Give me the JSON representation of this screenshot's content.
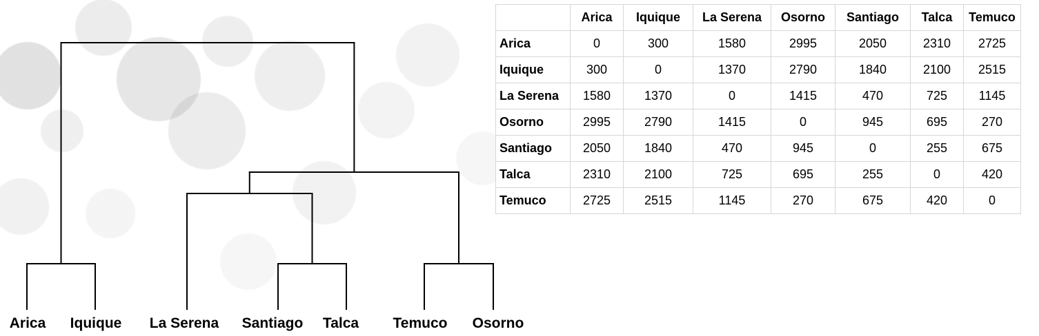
{
  "dendrogram": {
    "leaves": [
      "Arica",
      "Iquique",
      "La Serena",
      "Santiago",
      "Talca",
      "Temuco",
      "Osorno"
    ],
    "merges": [
      {
        "id": "m1",
        "children": [
          "Arica",
          "Iquique"
        ]
      },
      {
        "id": "m2",
        "children": [
          "Santiago",
          "Talca"
        ]
      },
      {
        "id": "m3",
        "children": [
          "Temuco",
          "Osorno"
        ]
      },
      {
        "id": "m4",
        "children": [
          "La Serena",
          "m2"
        ]
      },
      {
        "id": "m5",
        "children": [
          "m4",
          "m3"
        ]
      },
      {
        "id": "m6",
        "children": [
          "m1",
          "m5"
        ]
      }
    ]
  },
  "table": {
    "columns": [
      "Arica",
      "Iquique",
      "La Serena",
      "Osorno",
      "Santiago",
      "Talca",
      "Temuco"
    ],
    "rows": [
      {
        "name": "Arica",
        "values": [
          "0",
          "300",
          "1580",
          "2995",
          "2050",
          "2310",
          "2725"
        ]
      },
      {
        "name": "Iquique",
        "values": [
          "300",
          "0",
          "1370",
          "2790",
          "1840",
          "2100",
          "2515"
        ]
      },
      {
        "name": "La Serena",
        "values": [
          "1580",
          "1370",
          "0",
          "1415",
          "470",
          "725",
          "1145"
        ]
      },
      {
        "name": "Osorno",
        "values": [
          "2995",
          "2790",
          "1415",
          "0",
          "945",
          "695",
          "270"
        ]
      },
      {
        "name": "Santiago",
        "values": [
          "2050",
          "1840",
          "470",
          "945",
          "0",
          "255",
          "675"
        ]
      },
      {
        "name": "Talca",
        "values": [
          "2310",
          "2100",
          "725",
          "695",
          "255",
          "0",
          "420"
        ]
      },
      {
        "name": "Temuco",
        "values": [
          "2725",
          "2515",
          "1145",
          "270",
          "675",
          "420",
          "0"
        ]
      }
    ]
  }
}
